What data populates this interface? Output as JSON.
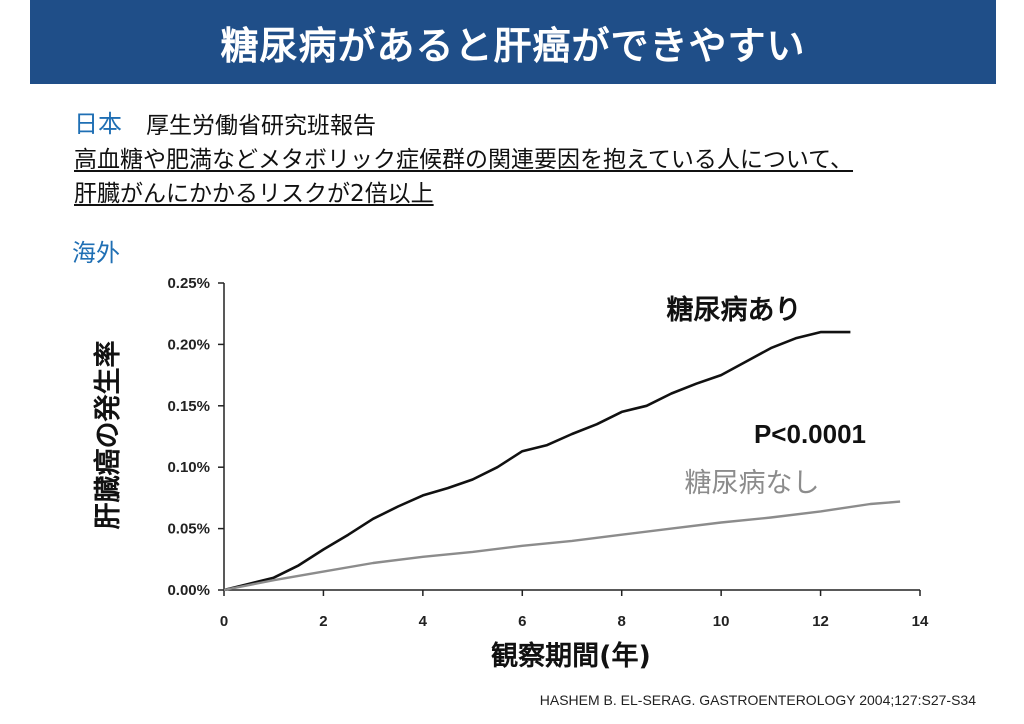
{
  "title": "糖尿病があると肝癌ができやすい",
  "japan": {
    "label": "日本",
    "source": "厚生労働省研究班報告",
    "finding_line1": "高血糖や肥満などメタボリック症候群の関連要因を抱えている人について、",
    "finding_line2": "肝臓がんにかかるリスクが2倍以上"
  },
  "overseas": {
    "label": "海外"
  },
  "citation": "HASHEM B. EL-SERAG.  GASTROENTEROLOGY 2004;127:S27-S34",
  "chart_data": {
    "type": "line",
    "xlabel": "観察期間(年)",
    "ylabel": "肝臓癌の発生率",
    "xlim": [
      0,
      14
    ],
    "ylim": [
      0,
      0.25
    ],
    "x_ticks": [
      "0",
      "2",
      "4",
      "6",
      "8",
      "10",
      "12",
      "14"
    ],
    "y_ticks": [
      "0.00%",
      "0.05%",
      "0.10%",
      "0.15%",
      "0.20%",
      "0.25%"
    ],
    "annotation": "P<0.0001",
    "series": [
      {
        "name": "糖尿病あり",
        "color": "#111111",
        "x": [
          0,
          0.5,
          1,
          1.5,
          2,
          2.5,
          3,
          3.5,
          4,
          4.5,
          5,
          5.5,
          6,
          6.5,
          7,
          7.5,
          8,
          8.5,
          9,
          9.5,
          10,
          10.5,
          11,
          11.5,
          12,
          12.6
        ],
        "y": [
          0,
          0.005,
          0.01,
          0.02,
          0.033,
          0.045,
          0.058,
          0.068,
          0.077,
          0.083,
          0.09,
          0.1,
          0.113,
          0.118,
          0.127,
          0.135,
          0.145,
          0.15,
          0.16,
          0.168,
          0.175,
          0.186,
          0.197,
          0.205,
          0.21,
          0.21
        ]
      },
      {
        "name": "糖尿病なし",
        "color": "#8c8c8c",
        "x": [
          0,
          1,
          2,
          3,
          4,
          5,
          6,
          7,
          8,
          9,
          10,
          11,
          12,
          13,
          13.6
        ],
        "y": [
          0,
          0.008,
          0.015,
          0.022,
          0.027,
          0.031,
          0.036,
          0.04,
          0.045,
          0.05,
          0.055,
          0.059,
          0.064,
          0.07,
          0.072
        ]
      }
    ]
  }
}
